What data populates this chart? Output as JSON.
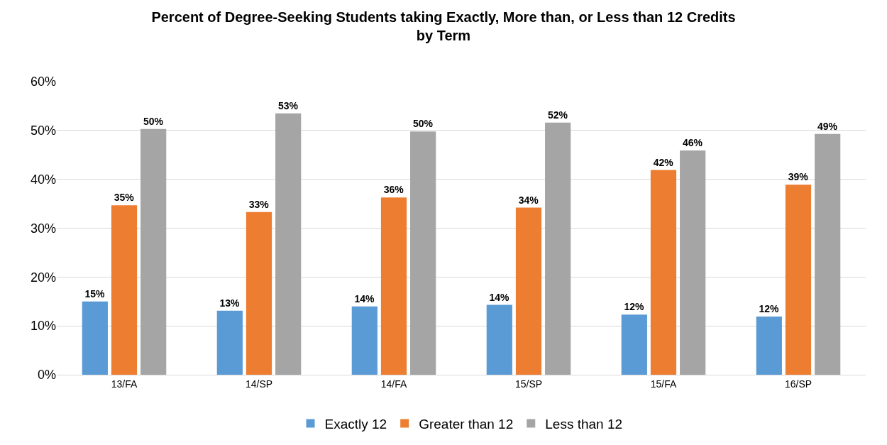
{
  "chart_data": {
    "type": "bar",
    "title": "Percent of Degree-Seeking Students taking Exactly, More than, or Less than 12 Credits\nby Term",
    "categories": [
      "13/FA",
      "14/SP",
      "14/FA",
      "15/SP",
      "15/FA",
      "16/SP"
    ],
    "series": [
      {
        "name": "Exactly 12",
        "color": "#5b9bd5",
        "values": [
          15.0,
          13.1,
          14.0,
          14.3,
          12.3,
          11.9
        ],
        "value_labels": [
          "15%",
          "13%",
          "14%",
          "14%",
          "12%",
          "12%"
        ]
      },
      {
        "name": "Greater than 12",
        "color": "#ed7d31",
        "values": [
          34.7,
          33.3,
          36.3,
          34.2,
          41.9,
          38.9
        ],
        "value_labels": [
          "35%",
          "33%",
          "36%",
          "34%",
          "42%",
          "39%"
        ]
      },
      {
        "name": "Less than 12",
        "color": "#a5a5a5",
        "values": [
          50.3,
          53.5,
          49.8,
          51.6,
          45.9,
          49.3
        ],
        "value_labels": [
          "50%",
          "53%",
          "50%",
          "52%",
          "46%",
          "49%"
        ]
      }
    ],
    "ylim": [
      0,
      60
    ],
    "yticks": [
      {
        "value": 0,
        "label": "0%"
      },
      {
        "value": 10,
        "label": "10%"
      },
      {
        "value": 20,
        "label": "20%"
      },
      {
        "value": 30,
        "label": "30%"
      },
      {
        "value": 40,
        "label": "40%"
      },
      {
        "value": 50,
        "label": "50%"
      },
      {
        "value": 60,
        "label": "60%"
      }
    ],
    "grid": "y",
    "legend": "bottom"
  }
}
